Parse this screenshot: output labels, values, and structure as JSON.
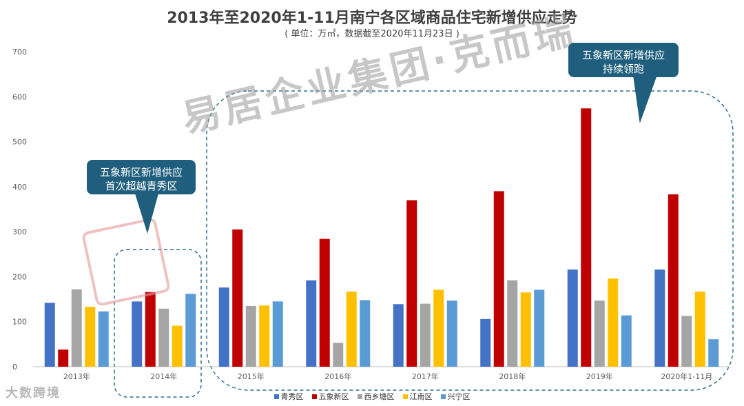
{
  "chart_data": {
    "type": "bar",
    "title": "2013年至2020年1-11月南宁各区域商品住宅新增供应走势",
    "subtitle": "( 单位：万㎡，数据截至2020年11月23日 )",
    "categories": [
      "2013年",
      "2014年",
      "2015年",
      "2016年",
      "2017年",
      "2018年",
      "2019年",
      "2020年1-11月"
    ],
    "ylim": [
      0,
      700
    ],
    "yticks": [
      0,
      100,
      200,
      300,
      400,
      500,
      600,
      700
    ],
    "grid": false,
    "legend_position": "bottom",
    "series": [
      {
        "name": "青秀区",
        "color": "#4472c4",
        "values": [
          142,
          145,
          176,
          192,
          139,
          106,
          216,
          216
        ]
      },
      {
        "name": "五象新区",
        "color": "#c00000",
        "values": [
          38,
          166,
          305,
          284,
          370,
          390,
          574,
          383
        ]
      },
      {
        "name": "西乡塘区",
        "color": "#a5a5a5",
        "values": [
          172,
          129,
          135,
          53,
          140,
          192,
          147,
          113
        ]
      },
      {
        "name": "江南区",
        "color": "#ffc000",
        "values": [
          133,
          91,
          136,
          167,
          171,
          165,
          196,
          167
        ]
      },
      {
        "name": "兴宁区",
        "color": "#5b9bd5",
        "values": [
          123,
          162,
          145,
          148,
          147,
          171,
          114,
          61
        ]
      }
    ],
    "annotations": [
      {
        "text": "五象新区新增供应\n首次超越青秀区"
      },
      {
        "text": "五象新区新增供应\n持续领跑"
      }
    ]
  },
  "callouts": {
    "first_line1": "五象新区新增供应",
    "first_line2": "首次超越青秀区",
    "second_line1": "五象新区新增供应",
    "second_line2": "持续领跑"
  },
  "watermark": {
    "text": "易居企业集团·克而瑞"
  },
  "corner_logo": {
    "text": "大数跨境"
  },
  "colors": {
    "callout": "#1f5f7d",
    "dashed_box": "#2e6f8e",
    "axis_text": "#595959"
  }
}
